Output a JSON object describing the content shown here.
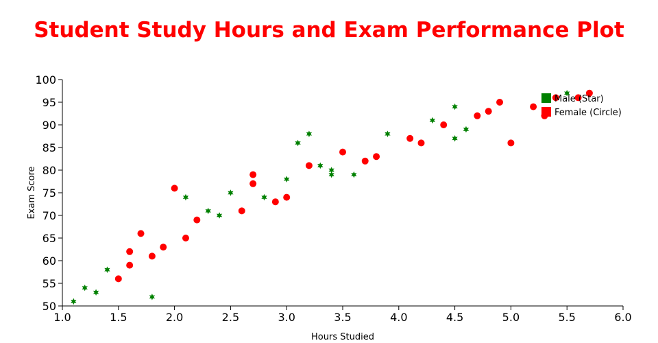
{
  "chart_data": {
    "type": "scatter",
    "title": "Student Study Hours and Exam Performance Plot",
    "xlabel": "Hours Studied",
    "ylabel": "Exam Score",
    "xlim": [
      1.0,
      6.0
    ],
    "ylim": [
      50,
      100
    ],
    "xticks": [
      "1.0",
      "1.5",
      "2.0",
      "2.5",
      "3.0",
      "3.5",
      "4.0",
      "4.5",
      "5.0",
      "5.5",
      "6.0"
    ],
    "yticks": [
      "50",
      "55",
      "60",
      "65",
      "70",
      "75",
      "80",
      "85",
      "90",
      "95",
      "100"
    ],
    "grid": false,
    "legend_position": "top-right",
    "series": [
      {
        "name": "Male (Star)",
        "marker": "star",
        "color": "#008000",
        "x": [
          1.1,
          1.2,
          1.3,
          1.4,
          1.8,
          2.1,
          2.3,
          2.4,
          2.5,
          2.8,
          3.0,
          3.1,
          3.2,
          3.3,
          3.4,
          3.4,
          3.6,
          3.9,
          4.3,
          4.5,
          4.5,
          4.6,
          5.5
        ],
        "y": [
          51,
          54,
          53,
          58,
          52,
          74,
          71,
          70,
          75,
          74,
          78,
          86,
          88,
          81,
          80,
          79,
          79,
          88,
          91,
          94,
          87,
          89,
          97
        ]
      },
      {
        "name": "Female (Circle)",
        "marker": "circle",
        "color": "#ff0000",
        "x": [
          1.5,
          1.6,
          1.6,
          1.7,
          1.8,
          1.9,
          2.0,
          2.1,
          2.2,
          2.6,
          2.7,
          2.7,
          2.9,
          3.0,
          3.2,
          3.5,
          3.7,
          3.8,
          4.1,
          4.2,
          4.4,
          4.7,
          4.8,
          4.9,
          5.0,
          5.2,
          5.3,
          5.4,
          5.6,
          5.7
        ],
        "y": [
          56,
          59,
          62,
          66,
          61,
          63,
          76,
          65,
          69,
          71,
          79,
          77,
          73,
          74,
          81,
          84,
          82,
          83,
          87,
          86,
          90,
          92,
          93,
          95,
          86,
          94,
          92,
          96,
          96,
          97
        ]
      }
    ]
  },
  "colors": {
    "title": "#ff0000",
    "male": "#008000",
    "female": "#ff0000"
  }
}
